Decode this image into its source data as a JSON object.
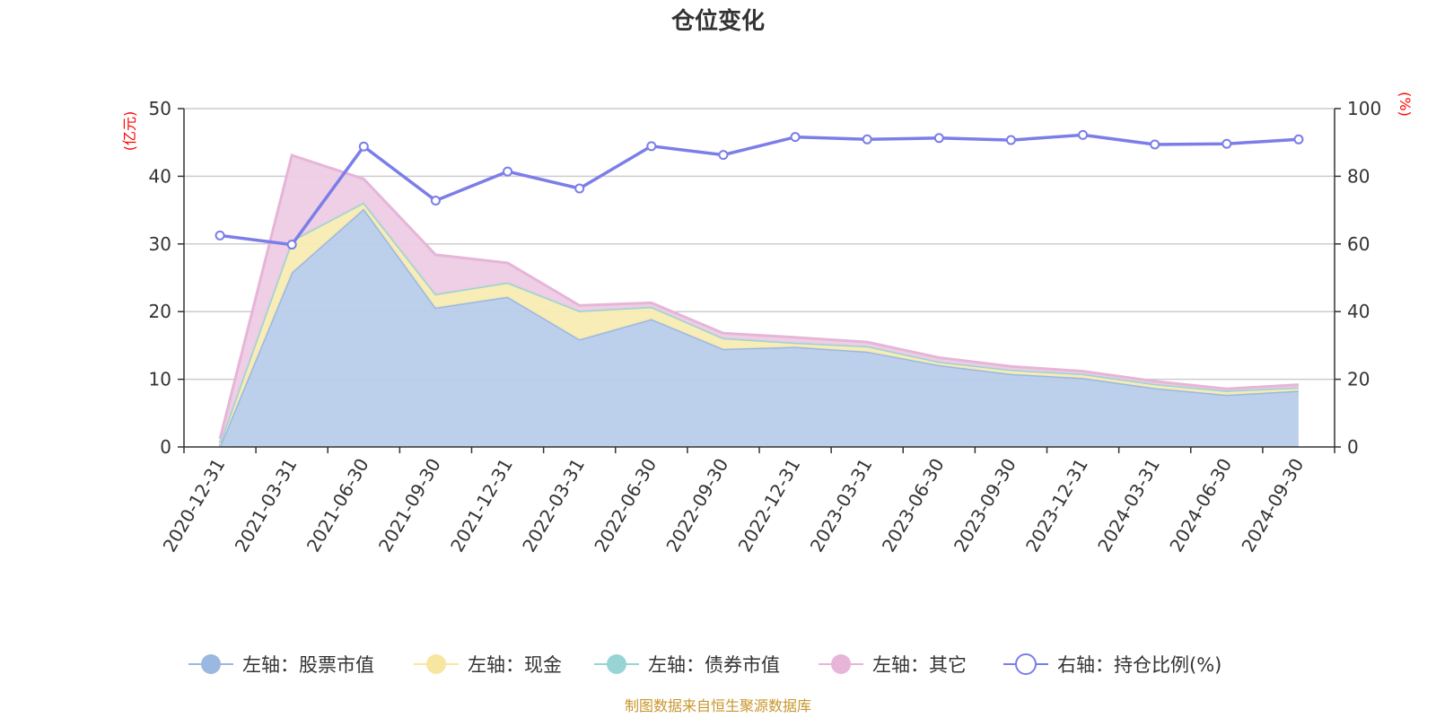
{
  "chart_data": {
    "type": "area",
    "title": "仓位变化",
    "left_axis": {
      "unit": "(亿元)",
      "ylim": [
        0,
        50
      ],
      "ticks": [
        0,
        10,
        20,
        30,
        40,
        50
      ],
      "grid": true
    },
    "right_axis": {
      "unit": "(%)",
      "ylim": [
        0,
        100
      ],
      "ticks": [
        0,
        20,
        40,
        60,
        80,
        100
      ]
    },
    "categories": [
      "2020-12-31",
      "2021-03-31",
      "2021-06-30",
      "2021-09-30",
      "2021-12-31",
      "2022-03-31",
      "2022-06-30",
      "2022-09-30",
      "2022-12-31",
      "2023-03-31",
      "2023-06-30",
      "2023-09-30",
      "2023-12-31",
      "2024-03-31",
      "2024-06-30",
      "2024-09-30"
    ],
    "stacked": true,
    "series": [
      {
        "name": "左轴：股票市值",
        "axis": "left",
        "kind": "area",
        "color": "#9bb8e0",
        "fill": "#b8cdea",
        "values": [
          0.1,
          25.8,
          35.2,
          20.6,
          22.2,
          15.9,
          18.9,
          14.5,
          14.8,
          14.1,
          12.1,
          10.8,
          10.2,
          8.7,
          7.7,
          8.3
        ]
      },
      {
        "name": "左轴：现金",
        "axis": "left",
        "kind": "area",
        "color": "#f7e6a0",
        "fill": "#f8ebb3",
        "values": [
          0.5,
          4.7,
          0.9,
          2.0,
          2.1,
          4.2,
          1.8,
          1.6,
          0.6,
          0.8,
          0.5,
          0.6,
          0.6,
          0.6,
          0.6,
          0.5
        ]
      },
      {
        "name": "左轴：债券市值",
        "axis": "left",
        "kind": "area",
        "color": "#99d4d4",
        "fill": "#99d4d4",
        "values": [
          0,
          0,
          0,
          0,
          0,
          0,
          0,
          0,
          0,
          0,
          0,
          0,
          0,
          0,
          0,
          0
        ]
      },
      {
        "name": "左轴：其它",
        "axis": "left",
        "kind": "area",
        "color": "#e6b5d8",
        "fill": "#edcce4",
        "values": [
          0.6,
          12.6,
          3.5,
          5.8,
          2.9,
          0.8,
          0.6,
          0.7,
          0.8,
          0.6,
          0.6,
          0.5,
          0.4,
          0.4,
          0.3,
          0.4
        ]
      },
      {
        "name": "右轴：持仓比例(%)",
        "axis": "right",
        "kind": "line",
        "color": "#7b7ee8",
        "values": [
          62.5,
          59.8,
          88.8,
          72.8,
          81.4,
          76.4,
          88.9,
          86.3,
          91.6,
          90.9,
          91.3,
          90.7,
          92.2,
          89.4,
          89.6,
          90.9
        ]
      }
    ],
    "legend_position": "bottom"
  },
  "source_text": "制图数据来自恒生聚源数据库",
  "colors": {
    "unit_label": "#ff0000",
    "source_text": "#c8962c",
    "axis": "#333333",
    "grid": "#cccccc"
  }
}
